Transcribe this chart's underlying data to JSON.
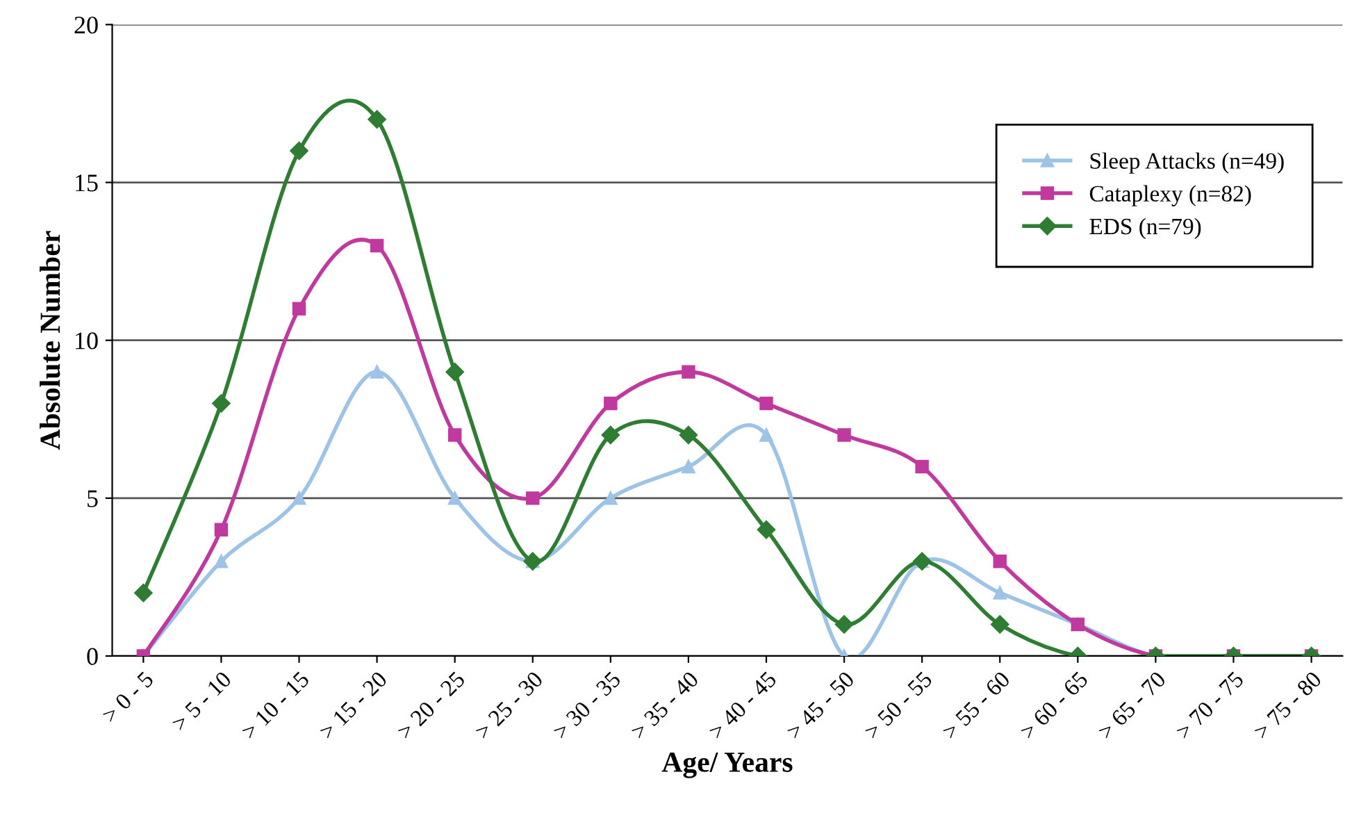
{
  "chart_data": {
    "type": "line",
    "xlabel": "Age/ Years",
    "ylabel": "Absolute Number",
    "categories": [
      "> 0 - 5",
      "> 5 - 10",
      "> 10 - 15",
      "> 15 - 20",
      "> 20 - 25",
      "> 25 - 30",
      "> 30 - 35",
      "> 35 - 40",
      "> 40 - 45",
      "> 45 - 50",
      "> 50 - 55",
      "> 55 - 60",
      "> 60 - 65",
      "> 65 - 70",
      "> 70 - 75",
      "> 75 - 80"
    ],
    "series": [
      {
        "name": "Sleep Attacks (n=49)",
        "color": "#9dc3e6",
        "marker": "triangle",
        "values": [
          0,
          3,
          5,
          9,
          5,
          3,
          5,
          6,
          7,
          0,
          3,
          2,
          1,
          0,
          0,
          0
        ]
      },
      {
        "name": "Cataplexy (n=82)",
        "color": "#c0399f",
        "marker": "square",
        "values": [
          0,
          4,
          11,
          13,
          7,
          5,
          8,
          9,
          8,
          7,
          6,
          3,
          1,
          0,
          0,
          0
        ]
      },
      {
        "name": "EDS (n=79)",
        "color": "#2e7d32",
        "marker": "diamond",
        "values": [
          2,
          8,
          16,
          17,
          9,
          3,
          7,
          7,
          4,
          1,
          3,
          1,
          0,
          0,
          0,
          0
        ]
      }
    ],
    "ylim": [
      0,
      20
    ],
    "yticks": [
      0,
      5,
      10,
      15,
      20
    ],
    "grid": "y",
    "legend": "top right",
    "line_style": "solid"
  }
}
